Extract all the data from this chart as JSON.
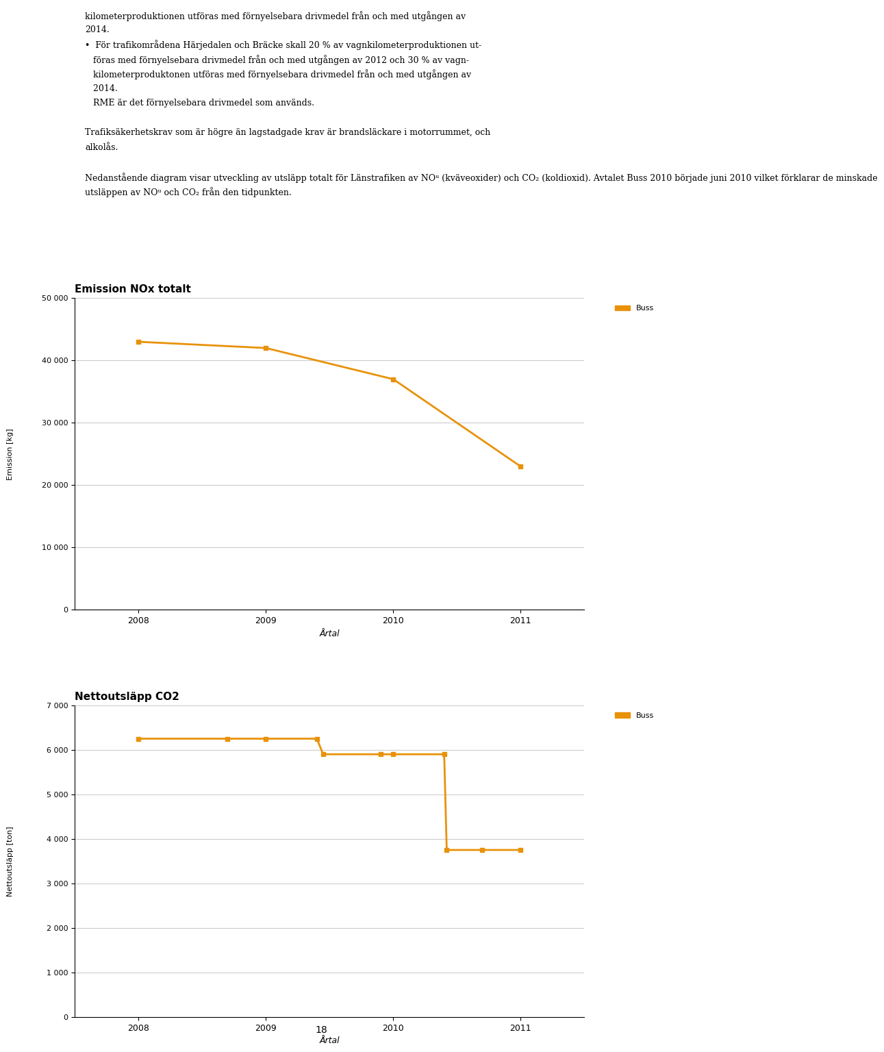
{
  "text_block": [
    "kilometerproduktionen utföras med förnyelsebara drivmedel från och med utgången av",
    "2014.",
    "För trafikområdena Härjedalen och Bräcke skall 20 % av vagnkilometerproduktionen ut-",
    "föras med förnyelsebara drivmedel från och med utgången av 2012 och 30 % av vagn-",
    "kilometerproduktonen utföras med förnyelsebara drivmedel från och med utgången av",
    "2014.",
    "RME är det förnyelsebara drivmedel som används.",
    "",
    "Trafiksäkerhetskrav som är högre än lagstadgade krav är brandsläckare i motorrummet, och",
    "alkolås.",
    "",
    "Nedanstående diagram visar utveckling av utsläpp totalt för Länstrafiken av NO",
    "X (kväveoxider) och CO2 (koldioxid). Avtalet Buss 2010 började juni 2010 vilket förklarar de minskade",
    "utsläppen av NOX och CO2 från den tidpunkten."
  ],
  "chart1": {
    "title": "Emission NOx totalt",
    "xlabel": "Årtal",
    "ylabel": "Emission [kg]",
    "legend_label": "Buss",
    "line_color": "#E8920A",
    "marker_color": "#E8920A",
    "x": [
      2008,
      2009,
      2010,
      2011
    ],
    "y": [
      43000,
      42000,
      37000,
      23000
    ],
    "ylim": [
      0,
      50000
    ],
    "yticks": [
      0,
      10000,
      20000,
      30000,
      40000,
      50000
    ],
    "ytick_labels": [
      "0",
      "10 000",
      "20 000",
      "30 000",
      "40 000",
      "50 000"
    ],
    "xticks": [
      2008,
      2009,
      2010,
      2011
    ]
  },
  "chart2": {
    "title": "Nettoutsläpp CO2",
    "xlabel": "Årtal",
    "ylabel": "Nettoutsläpp [ton]",
    "legend_label": "Buss",
    "line_color": "#E8920A",
    "marker_color": "#E8920A",
    "x": [
      2008.0,
      2008.7,
      2009.0,
      2009.4,
      2009.45,
      2009.9,
      2010.0,
      2010.4,
      2010.42,
      2010.7,
      2011.0
    ],
    "y": [
      6250,
      6250,
      6250,
      6250,
      5900,
      5900,
      5900,
      5900,
      3750,
      3750,
      3750
    ],
    "ylim": [
      0,
      7000
    ],
    "yticks": [
      0,
      1000,
      2000,
      3000,
      4000,
      5000,
      6000,
      7000
    ],
    "ytick_labels": [
      "0",
      "1 000",
      "2 000",
      "3 000",
      "4 000",
      "5 000",
      "6 000",
      "7 000"
    ],
    "xticks": [
      2008,
      2009,
      2010,
      2011
    ]
  },
  "background_color": "#FFFFFF",
  "grid_color": "#CCCCCC",
  "page_number": "18",
  "legend_box_color": "#E8920A"
}
